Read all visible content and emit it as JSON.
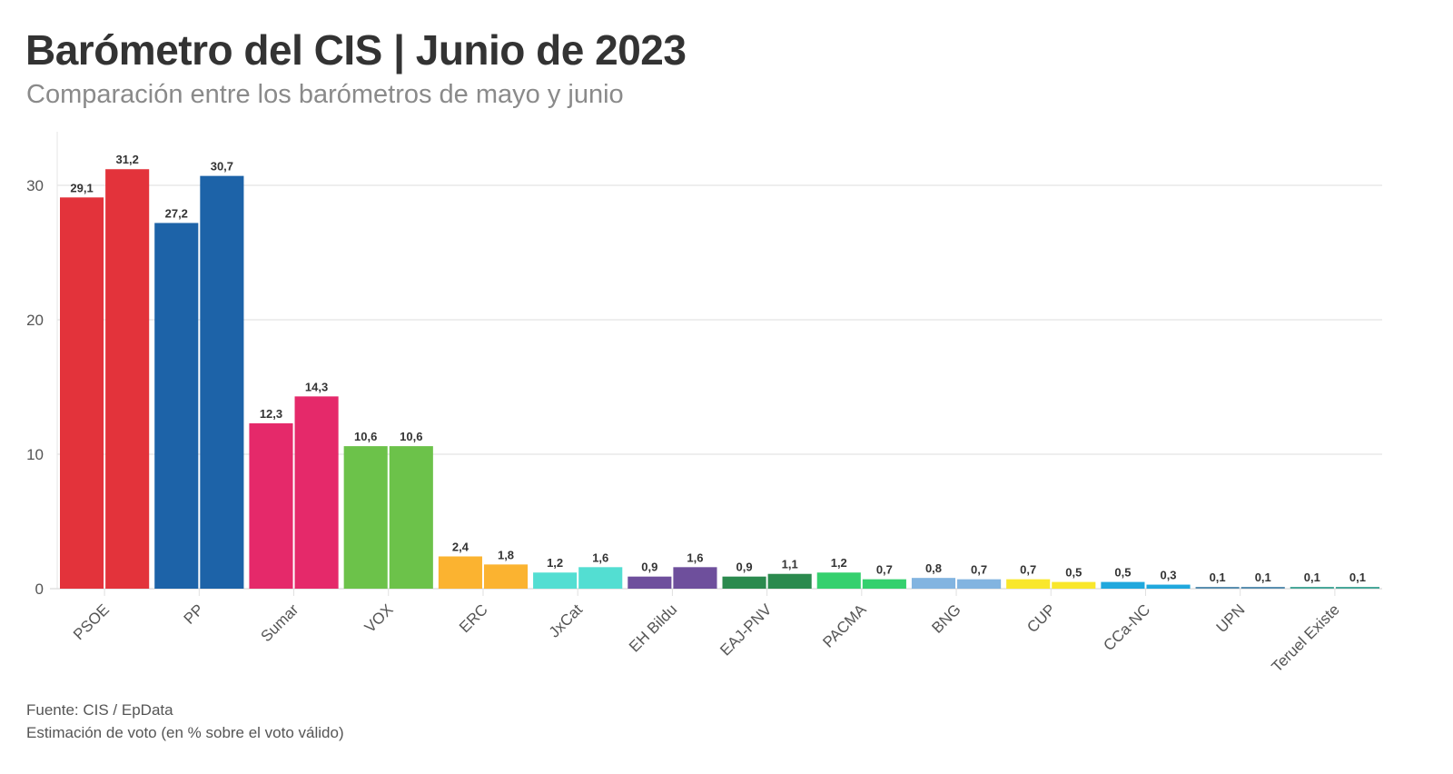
{
  "header": {
    "title": "Barómetro del CIS | Junio de 2023",
    "subtitle": "Comparación entre los barómetros de mayo y junio"
  },
  "footer": {
    "source": "Fuente: CIS / EpData",
    "note": "Estimación de voto (en % sobre el voto válido)"
  },
  "chart_data": {
    "type": "bar",
    "title": "Barómetro del CIS | Junio de 2023",
    "subtitle": "Comparación entre los barómetros de mayo y junio",
    "xlabel": "",
    "ylabel": "Estimación de voto (en % sobre el voto válido)",
    "ylim": [
      0,
      33
    ],
    "yticks": [
      0,
      10,
      20,
      30
    ],
    "grid": true,
    "legend": "none",
    "categories": [
      "PSOE",
      "PP",
      "Sumar",
      "VOX",
      "ERC",
      "JxCat",
      "EH Bildu",
      "EAJ-PNV",
      "PACMA",
      "BNG",
      "CUP",
      "CCa-NC",
      "UPN",
      "Teruel Existe"
    ],
    "series": [
      {
        "name": "Mayo",
        "values": [
          29.1,
          27.2,
          12.3,
          10.6,
          2.4,
          1.2,
          0.9,
          0.9,
          1.2,
          0.8,
          0.7,
          0.5,
          0.1,
          0.1
        ]
      },
      {
        "name": "Junio",
        "values": [
          31.2,
          30.7,
          14.3,
          10.6,
          1.8,
          1.6,
          1.6,
          1.1,
          0.7,
          0.7,
          0.5,
          0.3,
          0.1,
          0.1
        ]
      }
    ],
    "labels": {
      "Mayo": [
        "29,1",
        "27,2",
        "12,3",
        "10,6",
        "2,4",
        "1,2",
        "0,9",
        "0,9",
        "1,2",
        "0,8",
        "0,7",
        "0,5",
        "0,1",
        "0,1"
      ],
      "Junio": [
        "31,2",
        "30,7",
        "14,3",
        "10,6",
        "1,8",
        "1,6",
        "1,6",
        "1,1",
        "0,7",
        "0,7",
        "0,5",
        "0,3",
        "0,1",
        "0,1"
      ]
    },
    "colors": [
      "#e3333b",
      "#1d63a8",
      "#e5296a",
      "#6cc24a",
      "#fbb330",
      "#53ded2",
      "#6e4f9c",
      "#2b8a4e",
      "#35d06e",
      "#82b4e0",
      "#f9e72c",
      "#20a8dd",
      "#5a8fb0",
      "#4aa89a"
    ]
  }
}
